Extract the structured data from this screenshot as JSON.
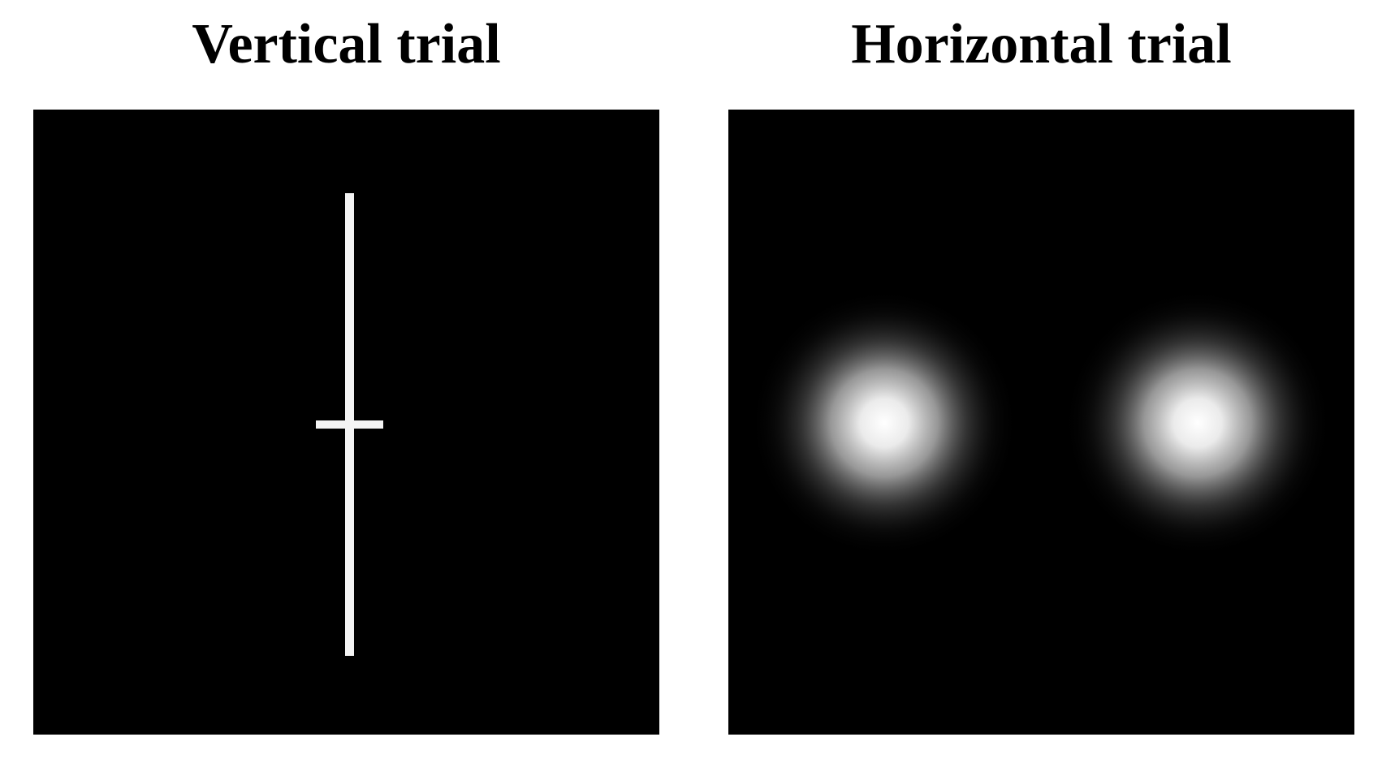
{
  "panels": [
    {
      "title": "Vertical trial",
      "stimulus": "vertical-line-with-cross",
      "background_color": "#000000",
      "stimulus_color": "#ffffff"
    },
    {
      "title": "Horizontal trial",
      "stimulus": "two-gaussian-blobs",
      "background_color": "#000000",
      "stimulus_color": "#ffffff"
    }
  ]
}
